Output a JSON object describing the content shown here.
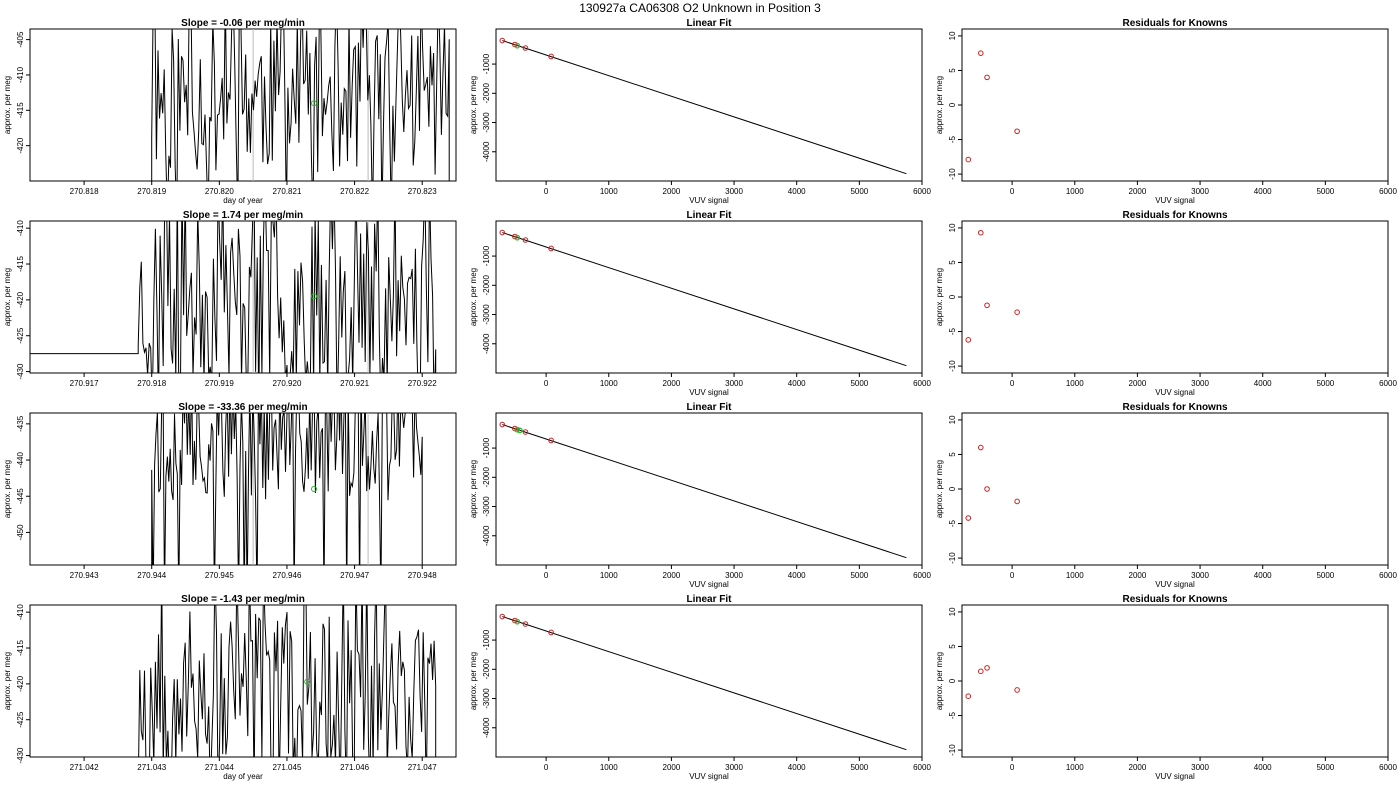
{
  "page": {
    "title": "130927a     CA06308   O2 Unknown in Position  3"
  },
  "colors": {
    "known": "#cc2222",
    "unknown": "#22bb22",
    "ref_line": "#bbbbbb",
    "line": "#000000"
  },
  "chart_data": [
    {
      "type": "line",
      "row": 0,
      "col": 0,
      "title": "Slope =  -0.06  per meg/min",
      "xlabel": "day of year",
      "ylabel": "approx. per meg",
      "xlim": [
        270.8172,
        270.8235
      ],
      "ylim": [
        -425,
        -403.5
      ],
      "xticks": [
        270.818,
        270.819,
        270.82,
        270.821,
        270.822,
        270.823
      ],
      "xtick_labels": [
        "270.818",
        "270.819",
        "270.820",
        "270.821",
        "270.822",
        "270.823"
      ],
      "yticks": [
        -405,
        -410,
        -415,
        -420
      ],
      "ytick_labels": [
        "-405",
        "-410",
        "-415",
        "-420"
      ],
      "vlines": [
        270.8205,
        270.8222
      ],
      "seed": 11,
      "x_start": 270.8172,
      "x_active": 270.819,
      "x_end": 270.8234,
      "y_base": -425,
      "y_mid": -413,
      "y_amp": 9,
      "unknown_point": {
        "x": 270.8214,
        "y": -414
      }
    },
    {
      "type": "scatter",
      "row": 0,
      "col": 1,
      "title": "Linear Fit",
      "xlabel": "VUV signal",
      "ylabel": "approx. per meg",
      "xlim": [
        -800,
        6000
      ],
      "ylim": [
        -5000,
        200
      ],
      "xticks": [
        0,
        1000,
        2000,
        3000,
        4000,
        5000,
        6000
      ],
      "xtick_labels": [
        "0",
        "1000",
        "2000",
        "3000",
        "4000",
        "5000",
        "6000"
      ],
      "yticks": [
        -1000,
        -2000,
        -3000,
        -4000
      ],
      "ytick_labels": [
        "-1000",
        "-2000",
        "-3000",
        "-4000"
      ],
      "fit_line": [
        [
          -700,
          -195
        ],
        [
          5750,
          -4750
        ]
      ],
      "knowns": [
        [
          -700,
          -195
        ],
        [
          -500,
          -330
        ],
        [
          -330,
          -450
        ],
        [
          80,
          -740
        ]
      ],
      "unknowns": [
        [
          -460,
          -370
        ]
      ]
    },
    {
      "type": "scatter",
      "row": 0,
      "col": 2,
      "title": "Residuals for Knowns",
      "xlabel": "VUV signal",
      "ylabel": "approx. per meg",
      "xlim": [
        -800,
        6000
      ],
      "ylim": [
        -11,
        11
      ],
      "xticks": [
        0,
        1000,
        2000,
        3000,
        4000,
        5000,
        6000
      ],
      "xtick_labels": [
        "0",
        "1000",
        "2000",
        "3000",
        "4000",
        "5000",
        "6000"
      ],
      "yticks": [
        10,
        5,
        0,
        -5,
        -10
      ],
      "ytick_labels": [
        "10",
        "5",
        "0",
        "-5",
        "-10"
      ],
      "knowns": [
        [
          -700,
          -7.9
        ],
        [
          -500,
          7.5
        ],
        [
          -400,
          4.0
        ],
        [
          80,
          -3.8
        ]
      ]
    },
    {
      "type": "line",
      "row": 1,
      "col": 0,
      "title": "Slope =  1.74  per meg/min",
      "xlabel": "",
      "ylabel": "approx. per meg",
      "xlim": [
        270.9162,
        270.9225
      ],
      "ylim": [
        -430.2,
        -409
      ],
      "xticks": [
        270.917,
        270.918,
        270.919,
        270.92,
        270.921,
        270.922
      ],
      "xtick_labels": [
        "270.917",
        "270.918",
        "270.919",
        "270.920",
        "270.921",
        "270.922"
      ],
      "yticks": [
        -410,
        -415,
        -420,
        -425,
        -430
      ],
      "ytick_labels": [
        "-410",
        "-415",
        "-420",
        "-425",
        "-430"
      ],
      "vlines": [
        270.9195,
        270.9212
      ],
      "seed": 23,
      "x_start": 270.9162,
      "x_active": 270.9178,
      "x_end": 270.9222,
      "y_base": -427.5,
      "y_mid": -420,
      "y_amp": 10,
      "unknown_point": {
        "x": 270.9204,
        "y": -419.5
      }
    },
    {
      "type": "scatter",
      "row": 1,
      "col": 1,
      "title": "Linear Fit",
      "xlabel": "VUV signal",
      "ylabel": "approx. per meg",
      "xlim": [
        -800,
        6000
      ],
      "ylim": [
        -5000,
        200
      ],
      "xticks": [
        0,
        1000,
        2000,
        3000,
        4000,
        5000,
        6000
      ],
      "xtick_labels": [
        "0",
        "1000",
        "2000",
        "3000",
        "4000",
        "5000",
        "6000"
      ],
      "yticks": [
        -1000,
        -2000,
        -3000,
        -4000
      ],
      "ytick_labels": [
        "-1000",
        "-2000",
        "-3000",
        "-4000"
      ],
      "fit_line": [
        [
          -700,
          -195
        ],
        [
          5750,
          -4750
        ]
      ],
      "knowns": [
        [
          -700,
          -195
        ],
        [
          -500,
          -330
        ],
        [
          -330,
          -450
        ],
        [
          80,
          -740
        ]
      ],
      "unknowns": [
        [
          -460,
          -370
        ]
      ]
    },
    {
      "type": "scatter",
      "row": 1,
      "col": 2,
      "title": "Residuals for Knowns",
      "xlabel": "VUV signal",
      "ylabel": "approx. per meg",
      "xlim": [
        -800,
        6000
      ],
      "ylim": [
        -11,
        11
      ],
      "xticks": [
        0,
        1000,
        2000,
        3000,
        4000,
        5000,
        6000
      ],
      "xtick_labels": [
        "0",
        "1000",
        "2000",
        "3000",
        "4000",
        "5000",
        "6000"
      ],
      "yticks": [
        10,
        5,
        0,
        -5,
        -10
      ],
      "ytick_labels": [
        "10",
        "5",
        "0",
        "-5",
        "-10"
      ],
      "knowns": [
        [
          -700,
          -6.2
        ],
        [
          -500,
          9.3
        ],
        [
          -400,
          -1.2
        ],
        [
          80,
          -2.2
        ]
      ]
    },
    {
      "type": "line",
      "row": 2,
      "col": 0,
      "title": "Slope =  -33.36  per meg/min",
      "xlabel": "",
      "ylabel": "approx. per meg",
      "xlim": [
        270.9422,
        270.9485
      ],
      "ylim": [
        -454.5,
        -433.5
      ],
      "xticks": [
        270.943,
        270.944,
        270.945,
        270.946,
        270.947,
        270.948
      ],
      "xtick_labels": [
        "270.943",
        "270.944",
        "270.945",
        "270.946",
        "270.947",
        "270.948"
      ],
      "yticks": [
        -435,
        -440,
        -445,
        -450
      ],
      "ytick_labels": [
        "-435",
        "-440",
        "-445",
        "-450"
      ],
      "vlines": [
        270.9455,
        270.9472
      ],
      "seed": 37,
      "x_start": 270.944,
      "x_active": 270.944,
      "x_end": 270.948,
      "y_base": -454.5,
      "y_mid": -437,
      "y_amp": 7,
      "unknown_point": {
        "x": 270.9464,
        "y": -444
      }
    },
    {
      "type": "scatter",
      "row": 2,
      "col": 1,
      "title": "Linear Fit",
      "xlabel": "VUV signal",
      "ylabel": "approx. per meg",
      "xlim": [
        -800,
        6000
      ],
      "ylim": [
        -5000,
        200
      ],
      "xticks": [
        0,
        1000,
        2000,
        3000,
        4000,
        5000,
        6000
      ],
      "xtick_labels": [
        "0",
        "1000",
        "2000",
        "3000",
        "4000",
        "5000",
        "6000"
      ],
      "yticks": [
        -1000,
        -2000,
        -3000,
        -4000
      ],
      "ytick_labels": [
        "-1000",
        "-2000",
        "-3000",
        "-4000"
      ],
      "fit_line": [
        [
          -700,
          -195
        ],
        [
          5750,
          -4750
        ]
      ],
      "knowns": [
        [
          -700,
          -195
        ],
        [
          -500,
          -330
        ],
        [
          -330,
          -450
        ],
        [
          80,
          -740
        ]
      ],
      "unknowns": [
        [
          -460,
          -370
        ],
        [
          -420,
          -395
        ]
      ]
    },
    {
      "type": "scatter",
      "row": 2,
      "col": 2,
      "title": "Residuals for Knowns",
      "xlabel": "VUV signal",
      "ylabel": "approx. per meg",
      "xlim": [
        -800,
        6000
      ],
      "ylim": [
        -11,
        11
      ],
      "xticks": [
        0,
        1000,
        2000,
        3000,
        4000,
        5000,
        6000
      ],
      "xtick_labels": [
        "0",
        "1000",
        "2000",
        "3000",
        "4000",
        "5000",
        "6000"
      ],
      "yticks": [
        10,
        5,
        0,
        -5,
        -10
      ],
      "ytick_labels": [
        "10",
        "5",
        "0",
        "-5",
        "-10"
      ],
      "knowns": [
        [
          -700,
          -4.2
        ],
        [
          -500,
          6.0
        ],
        [
          -400,
          0.0
        ],
        [
          80,
          -1.8
        ]
      ]
    },
    {
      "type": "line",
      "row": 3,
      "col": 0,
      "title": "Slope =  -1.43  per meg/min",
      "xlabel": "day of year",
      "ylabel": "approx. per meg",
      "xlim": [
        271.0412,
        271.0475
      ],
      "ylim": [
        -430.2,
        -409
      ],
      "xticks": [
        271.042,
        271.043,
        271.044,
        271.045,
        271.046,
        271.047
      ],
      "xtick_labels": [
        "271.042",
        "271.043",
        "271.044",
        "271.045",
        "271.046",
        "271.047"
      ],
      "yticks": [
        -410,
        -415,
        -420,
        -425,
        -430
      ],
      "ytick_labels": [
        "-410",
        "-415",
        "-420",
        "-425",
        "-430"
      ],
      "vlines": [],
      "seed": 53,
      "x_start": 271.0412,
      "x_active": 271.0428,
      "x_end": 271.0472,
      "y_base": -430.2,
      "y_mid": -421,
      "y_amp": 9,
      "unknown_point": {
        "x": 271.0453,
        "y": -419.7
      }
    },
    {
      "type": "scatter",
      "row": 3,
      "col": 1,
      "title": "Linear Fit",
      "xlabel": "VUV signal",
      "ylabel": "approx. per meg",
      "xlim": [
        -800,
        6000
      ],
      "ylim": [
        -5000,
        200
      ],
      "xticks": [
        0,
        1000,
        2000,
        3000,
        4000,
        5000,
        6000
      ],
      "xtick_labels": [
        "0",
        "1000",
        "2000",
        "3000",
        "4000",
        "5000",
        "6000"
      ],
      "yticks": [
        -1000,
        -2000,
        -3000,
        -4000
      ],
      "ytick_labels": [
        "-1000",
        "-2000",
        "-3000",
        "-4000"
      ],
      "fit_line": [
        [
          -700,
          -195
        ],
        [
          5750,
          -4750
        ]
      ],
      "knowns": [
        [
          -700,
          -195
        ],
        [
          -500,
          -330
        ],
        [
          -330,
          -450
        ],
        [
          80,
          -740
        ]
      ],
      "unknowns": [
        [
          -460,
          -370
        ]
      ]
    },
    {
      "type": "scatter",
      "row": 3,
      "col": 2,
      "title": "Residuals for Knowns",
      "xlabel": "VUV signal",
      "ylabel": "approx. per meg",
      "xlim": [
        -800,
        6000
      ],
      "ylim": [
        -11,
        11
      ],
      "xticks": [
        0,
        1000,
        2000,
        3000,
        4000,
        5000,
        6000
      ],
      "xtick_labels": [
        "0",
        "1000",
        "2000",
        "3000",
        "4000",
        "5000",
        "6000"
      ],
      "yticks": [
        10,
        5,
        0,
        -5,
        -10
      ],
      "ytick_labels": [
        "10",
        "5",
        "0",
        "-5",
        "-10"
      ],
      "knowns": [
        [
          -700,
          -2.2
        ],
        [
          -500,
          1.4
        ],
        [
          -400,
          1.9
        ],
        [
          80,
          -1.3
        ]
      ]
    }
  ]
}
